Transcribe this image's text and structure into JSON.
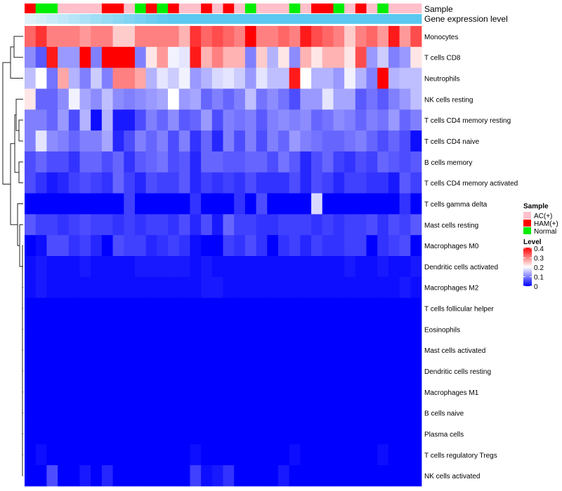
{
  "chart_data": {
    "type": "heatmap",
    "annotation_labels": {
      "sample": "Sample",
      "gene_expression": "Gene expression level"
    },
    "samples": [
      "HAM(+)",
      "Normal",
      "Normal",
      "AC(+)",
      "AC(+)",
      "AC(+)",
      "AC(+)",
      "HAM(+)",
      "HAM(+)",
      "AC(+)",
      "Normal",
      "HAM(+)",
      "Normal",
      "HAM(+)",
      "AC(+)",
      "AC(+)",
      "HAM(+)",
      "AC(+)",
      "HAM(+)",
      "AC(+)",
      "Normal",
      "AC(+)",
      "AC(+)",
      "AC(+)",
      "Normal",
      "AC(+)",
      "HAM(+)",
      "HAM(+)",
      "Normal",
      "AC(+)",
      "HAM(+)",
      "AC(+)",
      "Normal",
      "AC(+)",
      "AC(+)",
      "AC(+)"
    ],
    "sample_colors": {
      "AC(+)": "#ffc0cb",
      "HAM(+)": "#ff0000",
      "Normal": "#00ee00"
    },
    "gene_expression_color": "#5bc8f0",
    "gene_expression_light_color": "#dff2fa",
    "rows": [
      {
        "label": "Monocytes",
        "values": [
          0.32,
          0.36,
          0.3,
          0.3,
          0.3,
          0.28,
          0.3,
          0.3,
          0.24,
          0.24,
          0.3,
          0.3,
          0.3,
          0.3,
          0.26,
          0.36,
          0.32,
          0.34,
          0.32,
          0.3,
          0.4,
          0.3,
          0.3,
          0.32,
          0.3,
          0.38,
          0.34,
          0.32,
          0.3,
          0.24,
          0.3,
          0.32,
          0.28,
          0.38,
          0.28,
          0.34
        ]
      },
      {
        "label": "T cells CD8",
        "values": [
          0.11,
          0.07,
          0.38,
          0.12,
          0.12,
          0.4,
          0.1,
          0.4,
          0.4,
          0.4,
          0.1,
          0.22,
          0.28,
          0.19,
          0.18,
          0.38,
          0.26,
          0.3,
          0.26,
          0.26,
          0.1,
          0.24,
          0.14,
          0.22,
          0.11,
          0.26,
          0.22,
          0.26,
          0.26,
          0.22,
          0.34,
          0.12,
          0.16,
          0.1,
          0.12,
          0.22
        ]
      },
      {
        "label": "Neutrophils",
        "values": [
          0.15,
          0.2,
          0.09,
          0.27,
          0.14,
          0.1,
          0.16,
          0.1,
          0.3,
          0.3,
          0.27,
          0.14,
          0.18,
          0.16,
          0.19,
          0.12,
          0.14,
          0.17,
          0.18,
          0.16,
          0.12,
          0.18,
          0.15,
          0.15,
          0.38,
          0.2,
          0.14,
          0.14,
          0.12,
          0.19,
          0.14,
          0.1,
          0.4,
          0.14,
          0.15,
          0.15
        ]
      },
      {
        "label": "NK cells resting",
        "values": [
          0.22,
          0.08,
          0.08,
          0.11,
          0.19,
          0.13,
          0.11,
          0.15,
          0.11,
          0.1,
          0.11,
          0.12,
          0.13,
          0.2,
          0.12,
          0.13,
          0.08,
          0.1,
          0.08,
          0.1,
          0.15,
          0.09,
          0.11,
          0.09,
          0.06,
          0.12,
          0.12,
          0.18,
          0.13,
          0.13,
          0.07,
          0.09,
          0.07,
          0.1,
          0.12,
          0.15
        ]
      },
      {
        "label": "T cells CD4 memory resting",
        "values": [
          0.1,
          0.1,
          0.08,
          0.12,
          0.06,
          0.14,
          0.01,
          0.14,
          0.02,
          0.02,
          0.06,
          0.1,
          0.08,
          0.11,
          0.07,
          0.08,
          0.12,
          0.06,
          0.1,
          0.09,
          0.1,
          0.07,
          0.1,
          0.11,
          0.1,
          0.11,
          0.08,
          0.09,
          0.11,
          0.1,
          0.08,
          0.1,
          0.09,
          0.12,
          0.08,
          0.1
        ]
      },
      {
        "label": "T cells CD4 naive",
        "values": [
          0.1,
          0.18,
          0.11,
          0.1,
          0.08,
          0.1,
          0.1,
          0.13,
          0.03,
          0.06,
          0.1,
          0.08,
          0.1,
          0.06,
          0.1,
          0.04,
          0.08,
          0.03,
          0.1,
          0.06,
          0.1,
          0.06,
          0.1,
          0.08,
          0.12,
          0.1,
          0.09,
          0.08,
          0.08,
          0.09,
          0.1,
          0.08,
          0.06,
          0.08,
          0.06,
          0.01
        ]
      },
      {
        "label": "B cells memory",
        "values": [
          0.06,
          0.08,
          0.06,
          0.06,
          0.04,
          0.08,
          0.08,
          0.06,
          0.08,
          0.04,
          0.07,
          0.08,
          0.09,
          0.06,
          0.07,
          0.03,
          0.08,
          0.08,
          0.07,
          0.07,
          0.08,
          0.08,
          0.06,
          0.09,
          0.07,
          0.03,
          0.06,
          0.08,
          0.05,
          0.04,
          0.06,
          0.05,
          0.08,
          0.07,
          0.06,
          0.07
        ]
      },
      {
        "label": "T cells CD4 memory activated",
        "values": [
          0.06,
          0.04,
          0.02,
          0.03,
          0.05,
          0.06,
          0.05,
          0.04,
          0.08,
          0.05,
          0.03,
          0.06,
          0.05,
          0.05,
          0.07,
          0.03,
          0.05,
          0.04,
          0.05,
          0.04,
          0.06,
          0.04,
          0.04,
          0.04,
          0.06,
          0.03,
          0.06,
          0.05,
          0.03,
          0.05,
          0.05,
          0.04,
          0.04,
          0.02,
          0.07,
          0.05
        ]
      },
      {
        "label": "T cells gamma delta",
        "values": [
          0,
          0,
          0,
          0,
          0,
          0,
          0,
          0,
          0,
          0.05,
          0,
          0,
          0,
          0,
          0,
          0.04,
          0,
          0,
          0,
          0.04,
          0,
          0.06,
          0,
          0,
          0,
          0,
          0.17,
          0,
          0,
          0,
          0,
          0,
          0,
          0,
          0.04,
          0
        ]
      },
      {
        "label": "Mast cells resting",
        "values": [
          0.07,
          0.05,
          0.05,
          0.04,
          0.05,
          0.06,
          0.05,
          0.05,
          0.04,
          0.05,
          0.04,
          0.05,
          0.05,
          0.04,
          0.06,
          0.03,
          0.06,
          0.02,
          0.08,
          0.05,
          0.05,
          0.04,
          0.04,
          0.05,
          0.05,
          0.05,
          0.04,
          0.05,
          0.04,
          0.05,
          0.05,
          0.06,
          0.04,
          0.06,
          0.05,
          0.07
        ]
      },
      {
        "label": "Macrophages M0",
        "values": [
          0,
          0.01,
          0.06,
          0.06,
          0.04,
          0.05,
          0.03,
          0,
          0.06,
          0.05,
          0.05,
          0.03,
          0.04,
          0.05,
          0.04,
          0.01,
          0,
          0,
          0.05,
          0.04,
          0.06,
          0.04,
          0,
          0.04,
          0.05,
          0.03,
          0.05,
          0.04,
          0.04,
          0.05,
          0.05,
          0,
          0.04,
          0.05,
          0.06,
          0
        ]
      },
      {
        "label": "Dendritic cells activated",
        "values": [
          0.01,
          0.02,
          0.01,
          0.01,
          0.01,
          0.02,
          0.01,
          0.01,
          0.01,
          0.01,
          0.02,
          0.02,
          0.02,
          0.02,
          0.02,
          0.01,
          0.02,
          0.01,
          0.01,
          0.01,
          0.01,
          0.01,
          0.01,
          0.01,
          0.01,
          0.01,
          0.01,
          0.01,
          0.01,
          0.02,
          0.01,
          0.01,
          0.02,
          0.01,
          0.01,
          0.02
        ]
      },
      {
        "label": "Macrophages M2",
        "values": [
          0.01,
          0.02,
          0.01,
          0.01,
          0.01,
          0.01,
          0.01,
          0.01,
          0.01,
          0.01,
          0.01,
          0.01,
          0.01,
          0.01,
          0.01,
          0.01,
          0.02,
          0.02,
          0.01,
          0.01,
          0.01,
          0.01,
          0.01,
          0.01,
          0.01,
          0.01,
          0.01,
          0.01,
          0.01,
          0.01,
          0.01,
          0.01,
          0.01,
          0.01,
          0.02,
          0.01
        ]
      },
      {
        "label": "T cells follicular helper",
        "values": [
          0,
          0,
          0,
          0,
          0,
          0,
          0,
          0,
          0,
          0,
          0,
          0,
          0,
          0,
          0,
          0,
          0,
          0,
          0,
          0,
          0,
          0,
          0,
          0,
          0,
          0,
          0,
          0,
          0,
          0,
          0,
          0,
          0,
          0,
          0,
          0
        ]
      },
      {
        "label": "Eosinophils",
        "values": [
          0,
          0,
          0,
          0,
          0,
          0,
          0,
          0,
          0,
          0,
          0,
          0,
          0,
          0,
          0,
          0,
          0,
          0,
          0,
          0,
          0,
          0,
          0,
          0,
          0,
          0,
          0,
          0,
          0,
          0,
          0,
          0,
          0,
          0,
          0,
          0
        ]
      },
      {
        "label": "Mast cells activated",
        "values": [
          0,
          0,
          0,
          0,
          0,
          0,
          0,
          0,
          0,
          0,
          0,
          0,
          0,
          0,
          0,
          0,
          0,
          0,
          0,
          0,
          0,
          0,
          0,
          0,
          0,
          0,
          0,
          0,
          0,
          0,
          0,
          0,
          0,
          0,
          0,
          0
        ]
      },
      {
        "label": "Dendritic cells resting",
        "values": [
          0,
          0,
          0,
          0,
          0,
          0,
          0,
          0,
          0,
          0,
          0,
          0,
          0,
          0,
          0,
          0,
          0,
          0,
          0,
          0,
          0,
          0,
          0,
          0,
          0,
          0,
          0,
          0,
          0,
          0,
          0,
          0,
          0,
          0,
          0,
          0
        ]
      },
      {
        "label": "Macrophages M1",
        "values": [
          0,
          0,
          0,
          0,
          0,
          0,
          0,
          0,
          0,
          0,
          0,
          0,
          0,
          0,
          0,
          0,
          0,
          0,
          0,
          0,
          0,
          0,
          0,
          0,
          0,
          0,
          0,
          0,
          0,
          0,
          0,
          0,
          0,
          0,
          0,
          0
        ]
      },
      {
        "label": "B cells naive",
        "values": [
          0,
          0,
          0,
          0,
          0,
          0,
          0,
          0,
          0,
          0,
          0,
          0,
          0,
          0,
          0,
          0,
          0,
          0,
          0,
          0,
          0,
          0,
          0,
          0,
          0,
          0,
          0,
          0,
          0,
          0,
          0,
          0,
          0,
          0,
          0,
          0
        ]
      },
      {
        "label": "Plasma cells",
        "values": [
          0,
          0,
          0,
          0,
          0,
          0,
          0,
          0,
          0,
          0,
          0,
          0,
          0,
          0,
          0,
          0,
          0,
          0,
          0,
          0,
          0,
          0,
          0,
          0,
          0,
          0,
          0,
          0,
          0,
          0,
          0,
          0,
          0,
          0,
          0,
          0
        ]
      },
      {
        "label": "T cells regulatory  Tregs",
        "values": [
          0,
          0.01,
          0,
          0,
          0,
          0,
          0,
          0,
          0,
          0,
          0,
          0,
          0,
          0,
          0,
          0.01,
          0,
          0,
          0,
          0,
          0,
          0,
          0,
          0,
          0.01,
          0,
          0,
          0,
          0,
          0,
          0,
          0,
          0.01,
          0,
          0,
          0
        ]
      },
      {
        "label": "NK cells activated",
        "values": [
          0,
          0,
          0.06,
          0,
          0,
          0.02,
          0,
          0.03,
          0,
          0,
          0,
          0,
          0,
          0,
          0,
          0.05,
          0.01,
          0.02,
          0.04,
          0,
          0,
          0,
          0,
          0.02,
          0,
          0,
          0,
          0,
          0,
          0,
          0,
          0,
          0,
          0,
          0,
          0
        ]
      }
    ],
    "legend": {
      "sample_title": "Sample",
      "sample_entries": [
        "AC(+)",
        "HAM(+)",
        "Normal"
      ],
      "level_title": "Level",
      "level_ticks": [
        "0.4",
        "0.3",
        "0.2",
        "0.1",
        "0"
      ],
      "level_range": [
        0,
        0.4
      ]
    },
    "color_scale": {
      "low": "#0000ff",
      "mid": "#ffffff",
      "high": "#ff0000",
      "mid_value": 0.2
    }
  }
}
